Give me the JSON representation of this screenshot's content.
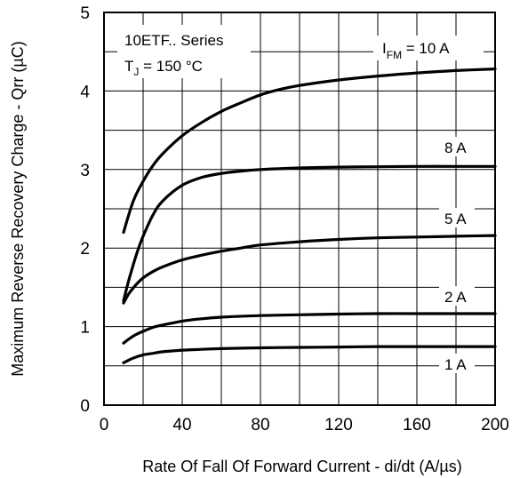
{
  "chart_data": {
    "type": "line",
    "xlabel": "Rate Of Fall Of Forward Current - di/dt (A/µs)",
    "ylabel": "Maximum Reverse Recovery Charge - Qrr (µC)",
    "xlim": [
      0,
      200
    ],
    "ylim": [
      0,
      5
    ],
    "x_ticks": [
      0,
      40,
      80,
      120,
      160,
      200
    ],
    "y_ticks": [
      0,
      1,
      2,
      3,
      4,
      5
    ],
    "x_tick_labels": [
      "0",
      "40",
      "80",
      "120",
      "160",
      "200"
    ],
    "y_tick_labels": [
      "0",
      "1",
      "2",
      "3",
      "4",
      "5"
    ],
    "grid": true,
    "x_grid_step": 20,
    "y_grid_step": 0.5,
    "annotation_series": "10ETF.. Series",
    "annotation_temp_main": "T",
    "annotation_temp_sub": "J",
    "annotation_temp_rest": " = 150 °C",
    "series": [
      {
        "label_main": "I",
        "label_sub": "FM",
        "label_rest": " = 10 A",
        "x": [
          10,
          15,
          20,
          25,
          30,
          40,
          50,
          60,
          70,
          80,
          90,
          100,
          120,
          140,
          160,
          180,
          200
        ],
        "values": [
          2.2,
          2.6,
          2.85,
          3.05,
          3.2,
          3.43,
          3.6,
          3.74,
          3.85,
          3.95,
          4.02,
          4.07,
          4.14,
          4.19,
          4.23,
          4.26,
          4.28
        ]
      },
      {
        "label_main": "8 A",
        "label_sub": "",
        "label_rest": "",
        "x": [
          10,
          13,
          17,
          20,
          25,
          30,
          40,
          50,
          60,
          70,
          80,
          100,
          120,
          140,
          160,
          180,
          200
        ],
        "values": [
          1.33,
          1.62,
          1.95,
          2.15,
          2.42,
          2.6,
          2.8,
          2.9,
          2.95,
          2.98,
          3.0,
          3.02,
          3.03,
          3.035,
          3.04,
          3.04,
          3.04
        ]
      },
      {
        "label_main": "5 A",
        "label_sub": "",
        "label_rest": "",
        "x": [
          10,
          13,
          17,
          20,
          25,
          30,
          40,
          50,
          60,
          70,
          80,
          100,
          120,
          140,
          160,
          180,
          200
        ],
        "values": [
          1.3,
          1.43,
          1.55,
          1.62,
          1.7,
          1.76,
          1.85,
          1.91,
          1.96,
          2.0,
          2.04,
          2.08,
          2.11,
          2.13,
          2.14,
          2.15,
          2.16
        ]
      },
      {
        "label_main": "2 A",
        "label_sub": "",
        "label_rest": "",
        "x": [
          10,
          15,
          20,
          25,
          30,
          40,
          50,
          60,
          80,
          100,
          120,
          140,
          160,
          180,
          200
        ],
        "values": [
          0.79,
          0.88,
          0.94,
          0.99,
          1.02,
          1.07,
          1.1,
          1.12,
          1.14,
          1.15,
          1.16,
          1.165,
          1.165,
          1.165,
          1.165
        ]
      },
      {
        "label_main": "1 A",
        "label_sub": "",
        "label_rest": "",
        "x": [
          10,
          15,
          20,
          25,
          30,
          40,
          50,
          60,
          80,
          100,
          120,
          140,
          160,
          180,
          200
        ],
        "values": [
          0.54,
          0.6,
          0.64,
          0.66,
          0.68,
          0.7,
          0.71,
          0.72,
          0.73,
          0.735,
          0.74,
          0.745,
          0.745,
          0.745,
          0.745
        ]
      }
    ]
  }
}
